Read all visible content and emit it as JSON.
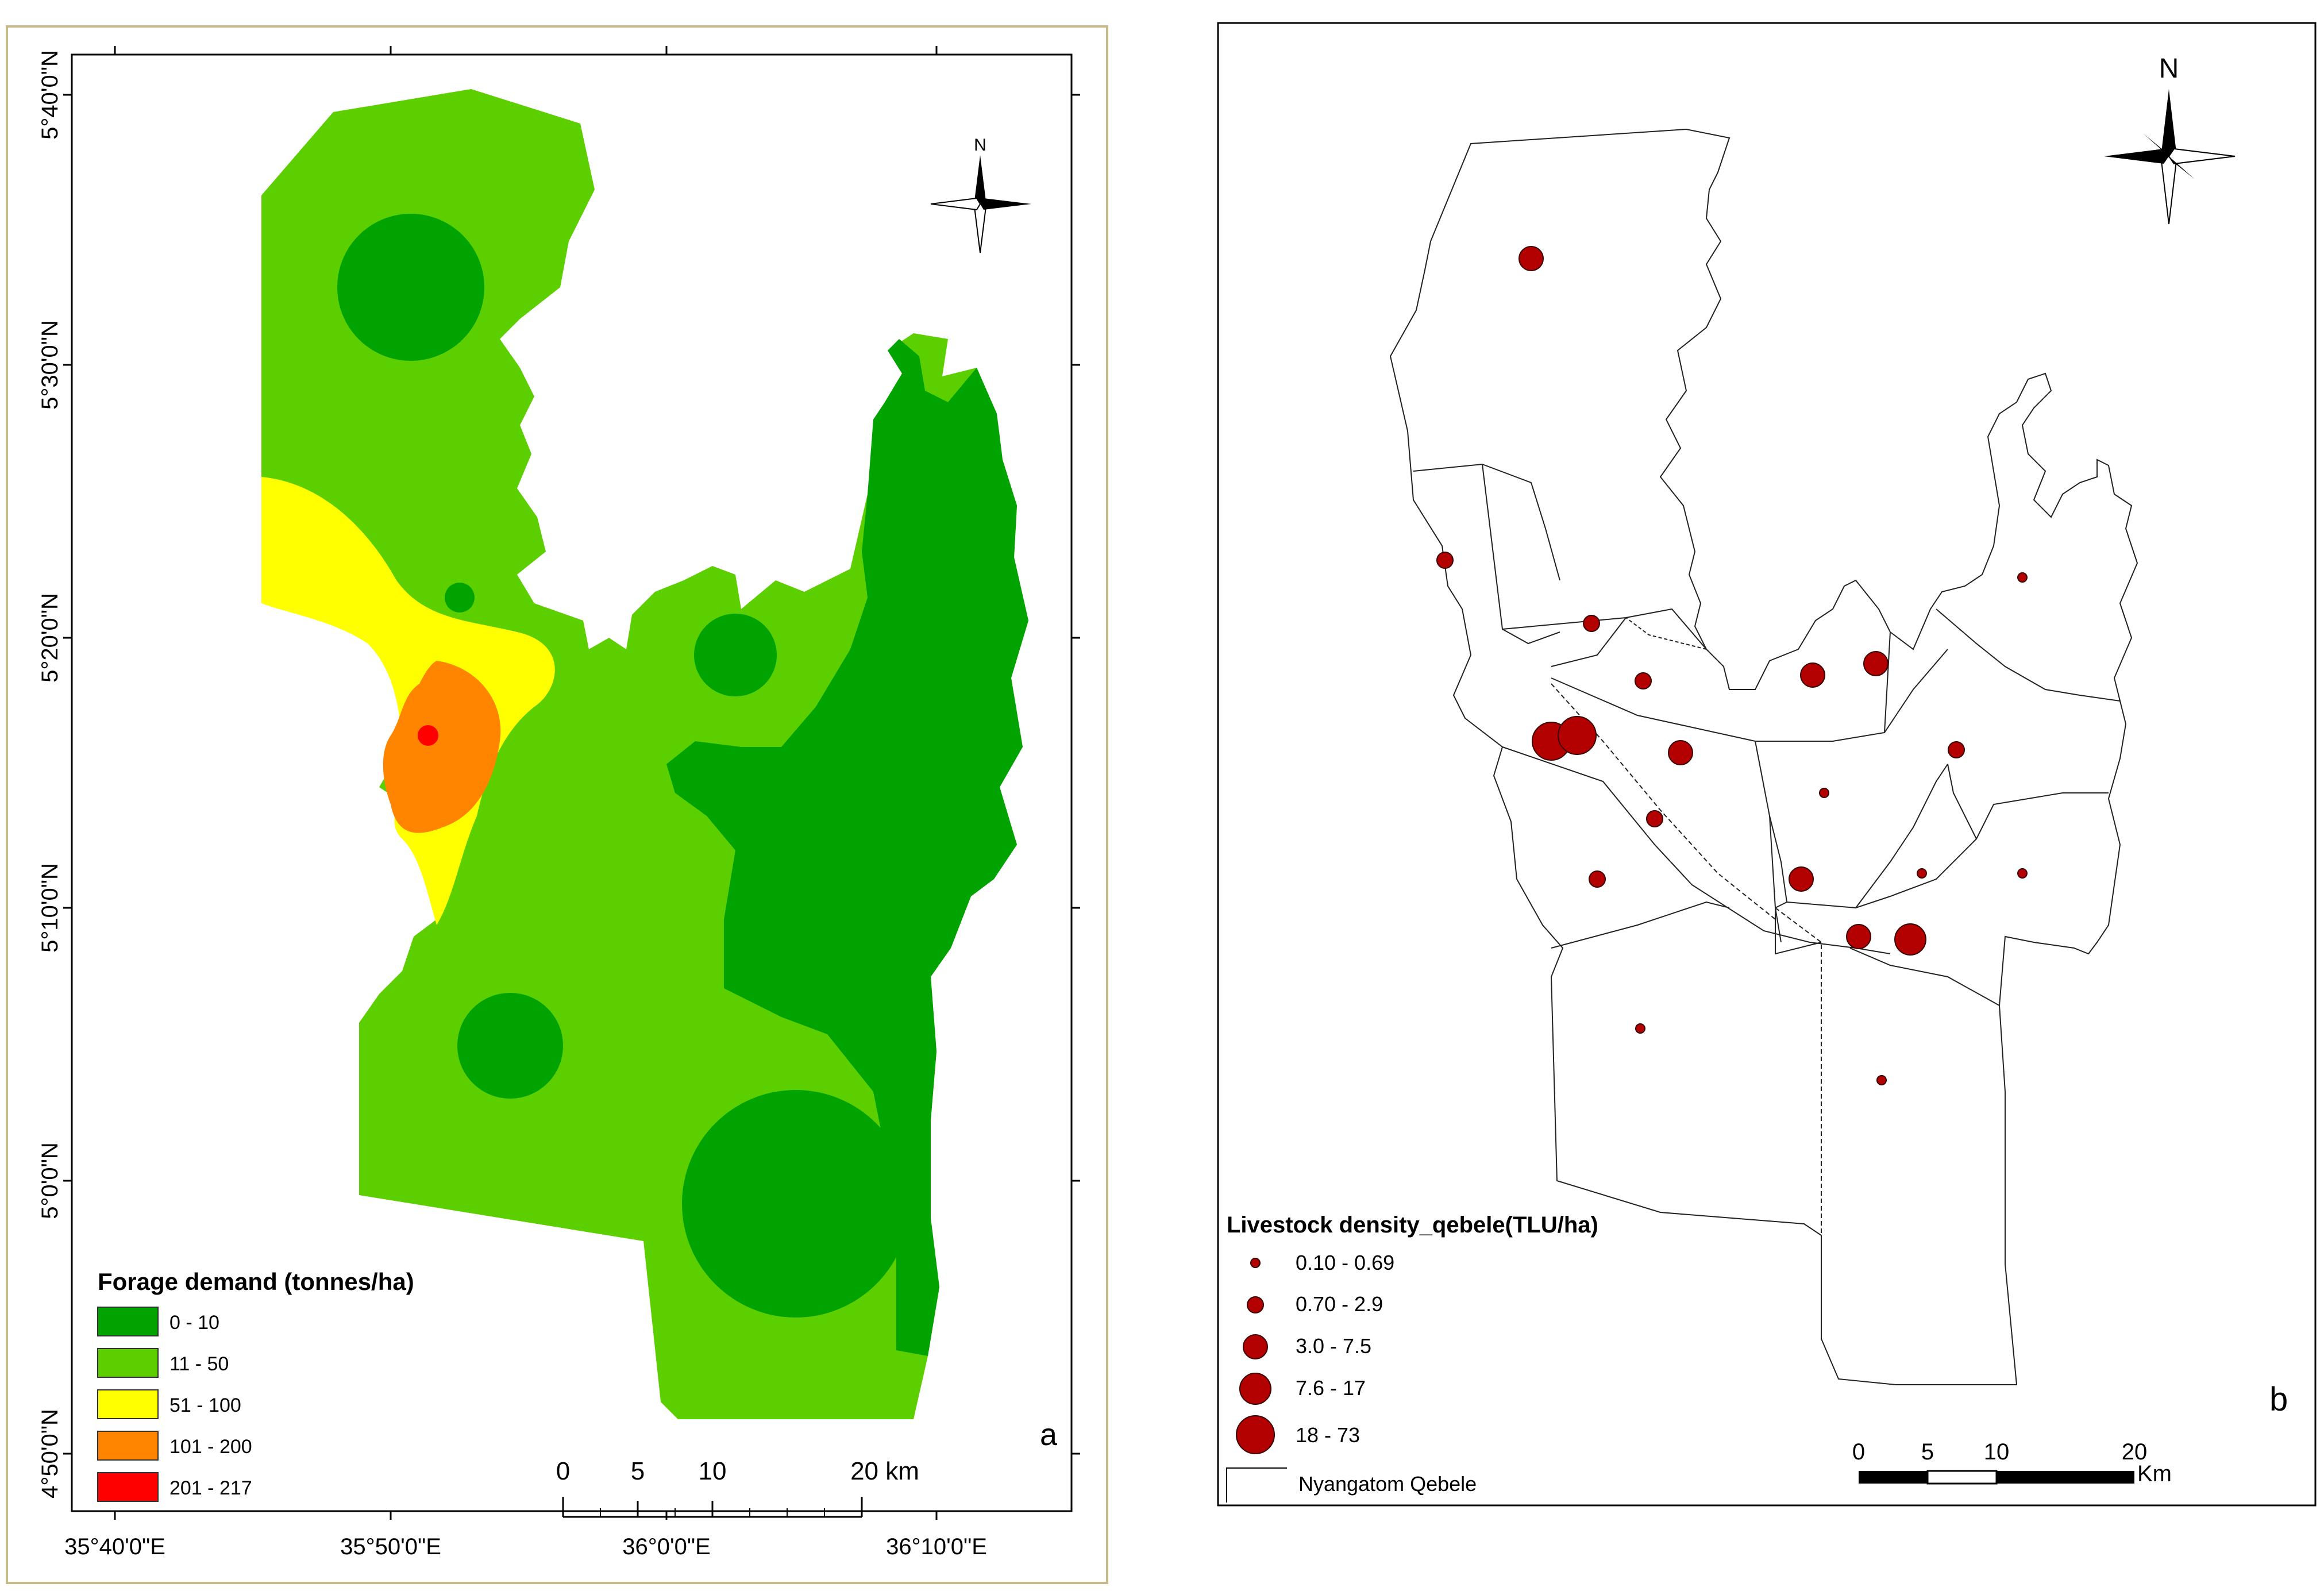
{
  "panel_a": {
    "panel_letter": "a",
    "north_label": "N",
    "legend": {
      "title": "Forage demand (tonnes/ha)",
      "classes": [
        {
          "label": "0 - 10",
          "color": "#00a300"
        },
        {
          "label": "11 - 50",
          "color": "#5ccf00"
        },
        {
          "label": "51 - 100",
          "color": "#ffff00"
        },
        {
          "label": "101 - 200",
          "color": "#ff8400"
        },
        {
          "label": "201 - 217",
          "color": "#ff0000"
        }
      ]
    },
    "scale_bar": {
      "labels": [
        "0",
        "5",
        "10",
        "20 km"
      ]
    },
    "lat_labels": [
      "5°40'0\"N",
      "5°30'0\"N",
      "5°20'0\"N",
      "5°10'0\"N",
      "5°0'0\"N",
      "4°50'0\"N"
    ],
    "lon_labels": [
      "35°40'0\"E",
      "35°50'0\"E",
      "36°0'0\"E",
      "36°10'0\"E"
    ]
  },
  "panel_b": {
    "panel_letter": "b",
    "north_label": "N",
    "legend": {
      "title": "Livestock density_qebele(TLU/ha)",
      "classes": [
        {
          "label": "0.10 - 0.69",
          "size_class": 1
        },
        {
          "label": "0.70 - 2.9",
          "size_class": 2
        },
        {
          "label": "3.0 - 7.5",
          "size_class": 3
        },
        {
          "label": "7.6 - 17",
          "size_class": 4
        },
        {
          "label": "18 - 73",
          "size_class": 5
        }
      ],
      "boundary_label": "Nyangatom  Qebele",
      "marker_color": "#b30000"
    },
    "scale_bar": {
      "labels": [
        "0",
        "5",
        "10",
        "20"
      ],
      "unit": "Km"
    },
    "points": [
      {
        "size_class": 3
      },
      {
        "size_class": 2
      },
      {
        "size_class": 2
      },
      {
        "size_class": 1
      },
      {
        "size_class": 2
      },
      {
        "size_class": 3
      },
      {
        "size_class": 3
      },
      {
        "size_class": 5
      },
      {
        "size_class": 5
      },
      {
        "size_class": 3
      },
      {
        "size_class": 2
      },
      {
        "size_class": 1
      },
      {
        "size_class": 2
      },
      {
        "size_class": 2
      },
      {
        "size_class": 3
      },
      {
        "size_class": 1
      },
      {
        "size_class": 1
      },
      {
        "size_class": 3
      },
      {
        "size_class": 4
      },
      {
        "size_class": 1
      },
      {
        "size_class": 1
      }
    ]
  }
}
